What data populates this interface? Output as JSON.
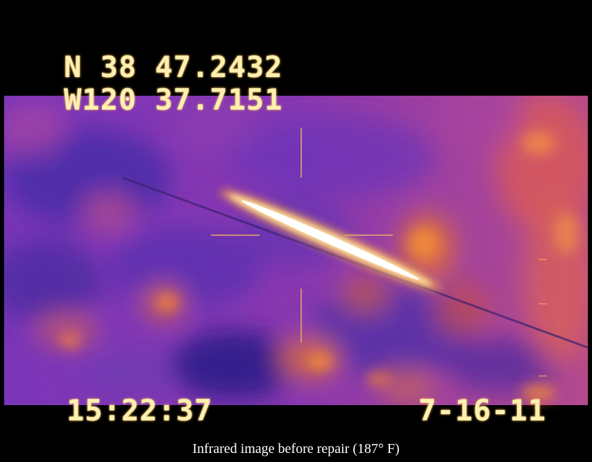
{
  "osd": {
    "latitude": "N 38 47.2432",
    "longitude": "W120 37.7151",
    "time": "15:22:37",
    "date": "7-16-11"
  },
  "caption": "Infrared image before repair (187° F)",
  "colors": {
    "osd_text": "#fdf0b0",
    "thermal_cold": "#4a2aa0",
    "thermal_mid": "#9a3ab0",
    "thermal_warm": "#e0603a",
    "thermal_hot": "#ffffff",
    "background": "#000000"
  }
}
